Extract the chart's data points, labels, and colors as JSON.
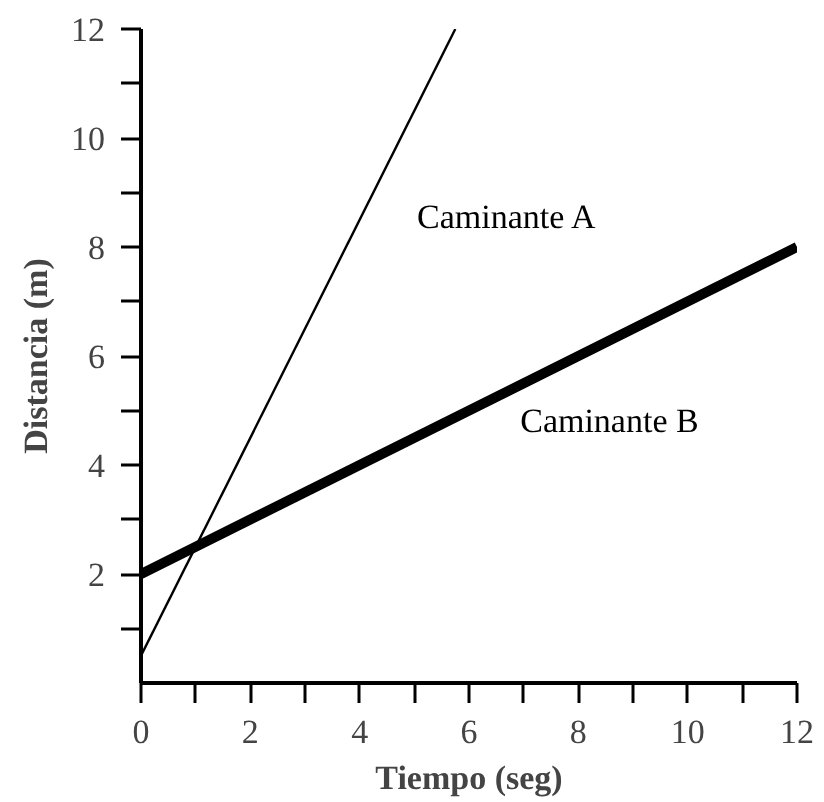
{
  "chart_data": {
    "type": "line",
    "xlabel": "Tiempo (seg)",
    "ylabel": "Distancia (m)",
    "series": [
      {
        "name": "Caminante A",
        "color": "#000000",
        "x": [
          0,
          5.75
        ],
        "values": [
          0.5,
          12
        ]
      },
      {
        "name": "Caminante B",
        "color": "#000000",
        "x": [
          0,
          12
        ],
        "values": [
          2,
          8
        ]
      }
    ],
    "xlim": [
      0,
      12
    ],
    "ylim": [
      0,
      12
    ],
    "xticks": [
      0,
      {
        "value": 1,
        "label": null
      },
      2,
      {
        "value": 3,
        "label": null
      },
      4,
      {
        "value": 5,
        "label": null
      },
      6,
      {
        "value": 7,
        "label": null
      },
      8,
      {
        "value": 9,
        "label": null
      },
      10,
      {
        "value": 11,
        "label": null
      },
      12
    ],
    "yticks": [
      {
        "value": 1,
        "label": null
      },
      2,
      {
        "value": 3,
        "label": null
      },
      4,
      {
        "value": 5,
        "label": null
      },
      6,
      {
        "value": 7,
        "label": null
      },
      8,
      {
        "value": 9,
        "label": null
      },
      10,
      {
        "value": 11,
        "label": null
      },
      12
    ],
    "grid": false,
    "marker": "none",
    "line_style": "solid"
  }
}
